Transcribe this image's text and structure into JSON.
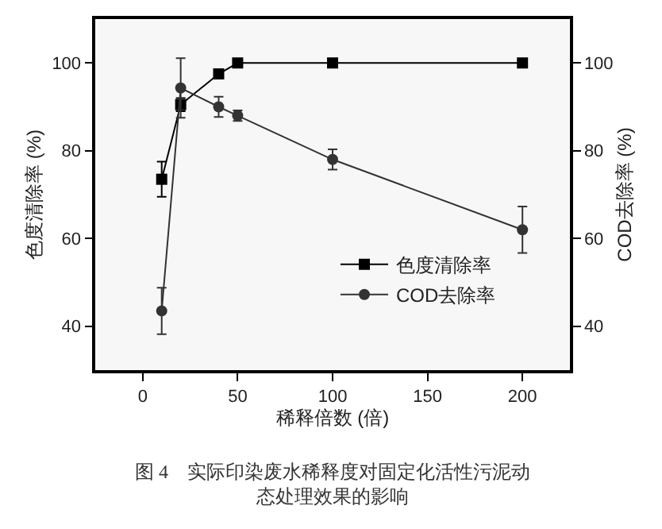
{
  "chart_data": {
    "type": "line",
    "title": "图 4　实际印染废水稀释度对固定化活性污泥动态处理效果的影响",
    "xlabel": "稀释倍数 (倍)",
    "ylabel": "色度清除率 (%)",
    "y2label": "COD去除率 (%)",
    "x": [
      10,
      20,
      40,
      50,
      100,
      200
    ],
    "series": [
      {
        "name": "色度清除率",
        "color": "#000000",
        "marker": "square",
        "values": [
          73.5,
          90.5,
          97.5,
          100,
          100,
          100
        ],
        "errors": [
          4,
          1.5,
          null,
          null,
          null,
          null
        ]
      },
      {
        "name": "COD去除率",
        "color": "#333333",
        "marker": "circle",
        "axis": "y2",
        "values": [
          43.5,
          94.3,
          90,
          88,
          78,
          62
        ],
        "errors": [
          5.3,
          6.8,
          2.3,
          1.2,
          2.3,
          5.3
        ]
      }
    ],
    "xlim": [
      -25,
      225
    ],
    "xticks": [
      0,
      50,
      100,
      150,
      200
    ],
    "ylim": [
      30,
      110
    ],
    "yticks": [
      40,
      60,
      80,
      100
    ],
    "y2lim": [
      30,
      110
    ],
    "y2ticks": [
      40,
      60,
      80,
      100
    ],
    "grid": false,
    "legend": "bottom right",
    "line_style": "solid"
  }
}
